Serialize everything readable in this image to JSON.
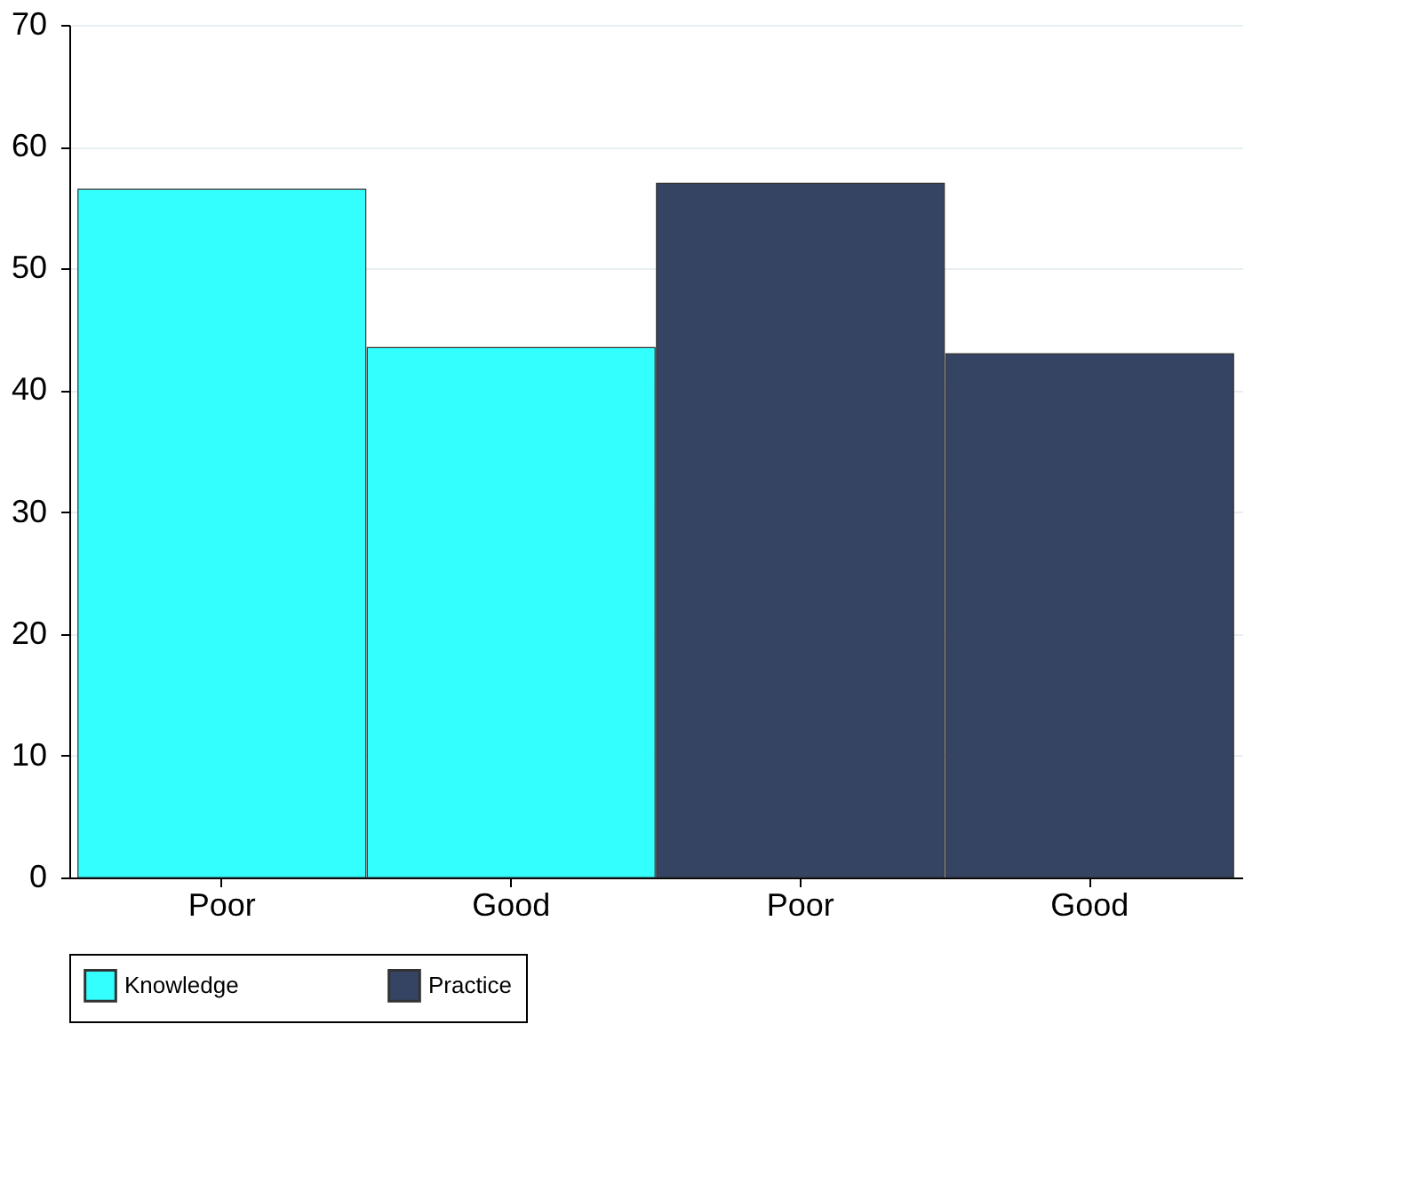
{
  "chart_data": {
    "type": "bar",
    "categories": [
      "Poor",
      "Good",
      "Poor",
      "Good"
    ],
    "series": [
      {
        "name": "Knowledge",
        "color": "#33ffff",
        "values": [
          56.5,
          43.5,
          null,
          null
        ]
      },
      {
        "name": "Practice",
        "color": "#354463",
        "values": [
          null,
          null,
          57,
          43
        ]
      }
    ],
    "ylim": [
      0,
      70
    ],
    "yticks": [
      0,
      10,
      20,
      30,
      40,
      50,
      60,
      70
    ],
    "grid": "y",
    "legend": "bottom"
  }
}
